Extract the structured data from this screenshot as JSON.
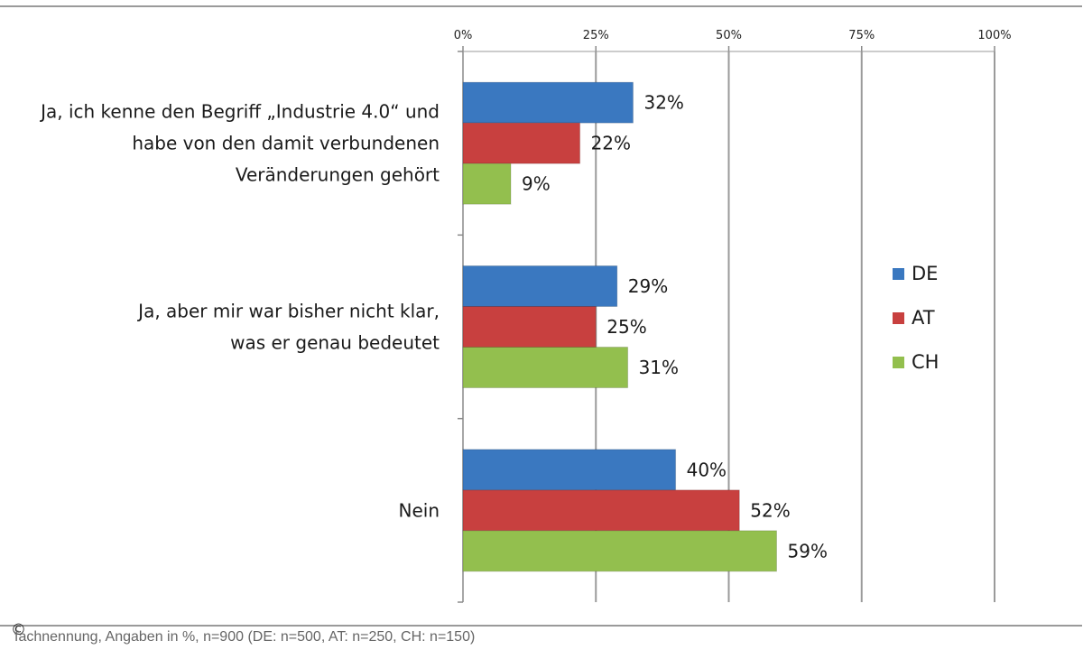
{
  "chart_data": {
    "type": "bar",
    "orientation": "horizontal",
    "categories": [
      [
        "Ja, ich kenne den Begriff „Industrie 4.0“ und",
        "habe von den damit verbundenen",
        "Veränderungen gehört"
      ],
      [
        "Ja, aber mir war bisher nicht klar,",
        "was er genau bedeutet"
      ],
      [
        "Nein"
      ]
    ],
    "series": [
      {
        "name": "DE",
        "values": [
          32,
          29,
          40
        ],
        "labels": [
          "32%",
          "29%",
          "40%"
        ],
        "color": "#3a78c0"
      },
      {
        "name": "AT",
        "values": [
          22,
          25,
          52
        ],
        "labels": [
          "22%",
          "25%",
          "52%"
        ],
        "color": "#c8403f"
      },
      {
        "name": "CH",
        "values": [
          9,
          31,
          59
        ],
        "labels": [
          "9%",
          "31%",
          "59%"
        ],
        "color": "#93bf4e"
      }
    ],
    "xlim": [
      0,
      100
    ],
    "xticks": [
      0,
      25,
      50,
      75,
      100
    ],
    "xtick_labels": [
      "0%",
      "25%",
      "50%",
      "75%",
      "100%"
    ],
    "x_axis_position": "top",
    "grid": true,
    "legend_position": "right"
  },
  "footnote": "fachnennung, Angaben in %, n=900 (DE: n=500, AT: n=250, CH: n=150)",
  "copyright_symbol": "©"
}
